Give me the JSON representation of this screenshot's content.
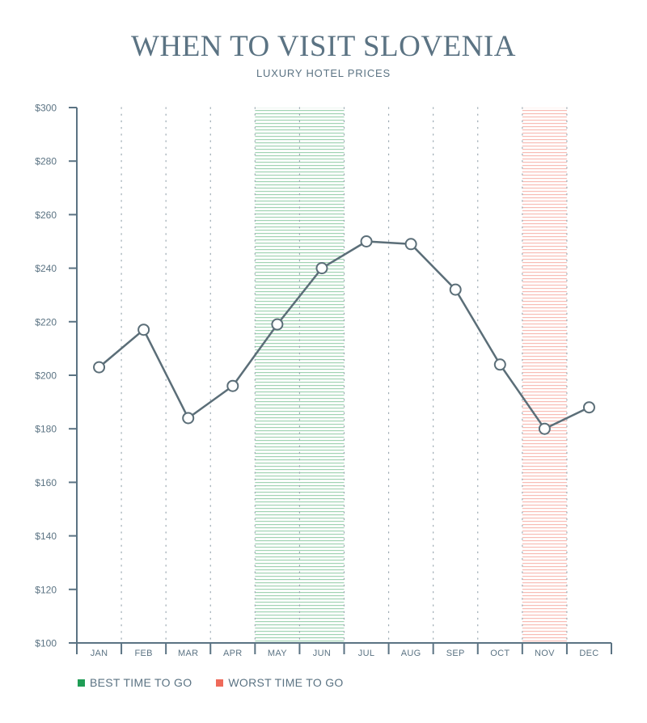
{
  "chart_data": {
    "type": "line",
    "title": "WHEN TO VISIT SLOVENIA",
    "subtitle": "LUXURY HOTEL PRICES",
    "categories": [
      "JAN",
      "FEB",
      "MAR",
      "APR",
      "MAY",
      "JUN",
      "JUL",
      "AUG",
      "SEP",
      "OCT",
      "NOV",
      "DEC"
    ],
    "series": [
      {
        "values": [
          203,
          217,
          184,
          196,
          219,
          240,
          250,
          249,
          232,
          204,
          180,
          188
        ]
      }
    ],
    "ylim": [
      100,
      300
    ],
    "yticks": [
      100,
      120,
      140,
      160,
      180,
      200,
      220,
      240,
      260,
      280,
      300
    ],
    "ytick_labels": [
      "$100",
      "$120",
      "$140",
      "$160",
      "$180",
      "$200",
      "$220",
      "$240",
      "$260",
      "$280",
      "$300"
    ],
    "highlights": [
      {
        "from": "MAY",
        "to": "JUN",
        "kind": "best",
        "color": "#2e9e57"
      },
      {
        "from": "NOV",
        "to": "NOV",
        "kind": "worst",
        "color": "#ef6a5a"
      }
    ],
    "legend": [
      {
        "label": "BEST TIME TO GO",
        "color": "#1f9d55"
      },
      {
        "label": "WORST TIME TO GO",
        "color": "#ef6a5a"
      }
    ],
    "line_color": "#5b6e78",
    "grid": "dotted vertical"
  }
}
